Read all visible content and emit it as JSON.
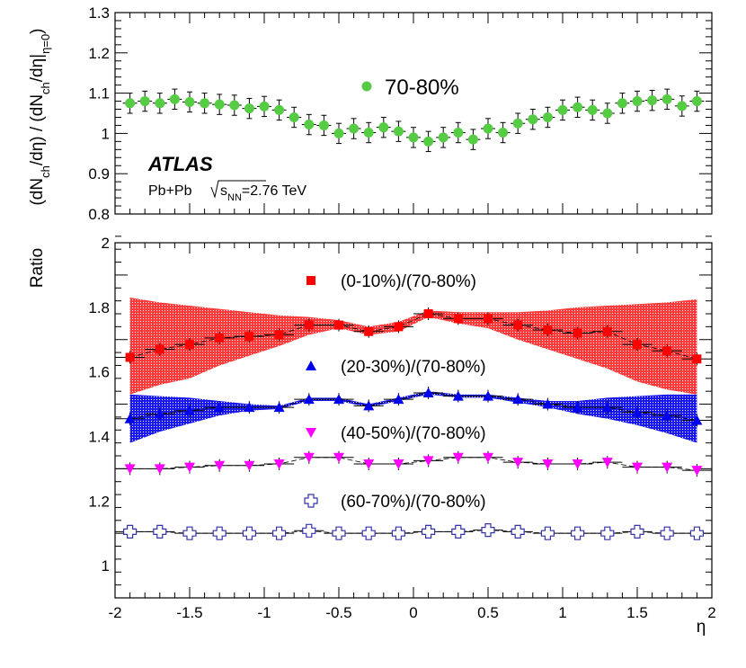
{
  "chart_data": [
    {
      "type": "scatter",
      "panel": "top",
      "ylabel_parts": [
        "(dN",
        "ch",
        "/dη) / (dN",
        "ch",
        "/dη|",
        "η=0",
        ")"
      ],
      "xlim": [
        -2,
        2
      ],
      "ylim": [
        0.8,
        1.3
      ],
      "yticks": [
        "0.8",
        "0.9",
        "1",
        "1.1",
        "1.2",
        "1.3"
      ],
      "experiment": "ATLAS",
      "system_label": "Pb+Pb",
      "energy_label_parts": [
        "s",
        "NN",
        "=2.76 TeV"
      ],
      "series": [
        {
          "name": "70-80%",
          "color": "#55cc44",
          "marker": "circle",
          "x": [
            -1.9,
            -1.8,
            -1.7,
            -1.6,
            -1.5,
            -1.4,
            -1.3,
            -1.2,
            -1.1,
            -1.0,
            -0.9,
            -0.8,
            -0.7,
            -0.6,
            -0.5,
            -0.4,
            -0.3,
            -0.2,
            -0.1,
            0.0,
            0.1,
            0.2,
            0.3,
            0.4,
            0.5,
            0.6,
            0.7,
            0.8,
            0.9,
            1.0,
            1.1,
            1.2,
            1.3,
            1.4,
            1.5,
            1.6,
            1.7,
            1.8,
            1.9
          ],
          "y": [
            1.075,
            1.08,
            1.075,
            1.085,
            1.078,
            1.075,
            1.072,
            1.07,
            1.062,
            1.067,
            1.058,
            1.04,
            1.022,
            1.02,
            1.0,
            1.012,
            1.002,
            1.015,
            1.005,
            0.99,
            0.98,
            0.99,
            1.002,
            0.985,
            1.012,
            1.002,
            1.025,
            1.035,
            1.04,
            1.058,
            1.065,
            1.058,
            1.05,
            1.075,
            1.08,
            1.082,
            1.085,
            1.068,
            1.08
          ],
          "yerr": [
            0.025,
            0.025,
            0.025,
            0.025,
            0.025,
            0.025,
            0.025,
            0.025,
            0.025,
            0.025,
            0.025,
            0.025,
            0.025,
            0.025,
            0.025,
            0.025,
            0.025,
            0.025,
            0.025,
            0.025,
            0.025,
            0.025,
            0.025,
            0.025,
            0.025,
            0.025,
            0.025,
            0.025,
            0.025,
            0.025,
            0.025,
            0.025,
            0.025,
            0.025,
            0.025,
            0.025,
            0.025,
            0.025,
            0.025
          ]
        }
      ]
    },
    {
      "type": "scatter",
      "panel": "bottom",
      "ylabel": "Ratio",
      "xlabel": "η",
      "xlim": [
        -2,
        2
      ],
      "ylim": [
        0.9,
        2.0
      ],
      "xticks": [
        "-2",
        "-1.5",
        "-1",
        "-0.5",
        "0",
        "0.5",
        "1",
        "1.5",
        "2"
      ],
      "yticks": [
        "1",
        "1.2",
        "1.4",
        "1.6",
        "1.8",
        "2"
      ],
      "x": [
        -1.9,
        -1.7,
        -1.5,
        -1.3,
        -1.1,
        -0.9,
        -0.7,
        -0.5,
        -0.3,
        -0.1,
        0.1,
        0.3,
        0.5,
        0.7,
        0.9,
        1.1,
        1.3,
        1.5,
        1.7,
        1.9
      ],
      "series": [
        {
          "name": "(0-10%)/(70-80%)",
          "color": "#ff0000",
          "marker": "square",
          "y": [
            1.645,
            1.67,
            1.685,
            1.705,
            1.71,
            1.715,
            1.745,
            1.745,
            1.725,
            1.74,
            1.78,
            1.765,
            1.765,
            1.745,
            1.73,
            1.72,
            1.725,
            1.685,
            1.665,
            1.64
          ],
          "band_upper": [
            1.83,
            1.815,
            1.805,
            1.795,
            1.785,
            1.775,
            1.77,
            1.76,
            1.74,
            1.755,
            1.79,
            1.785,
            1.785,
            1.785,
            1.79,
            1.8,
            1.805,
            1.81,
            1.815,
            1.825
          ],
          "band_lower": [
            1.53,
            1.56,
            1.58,
            1.62,
            1.65,
            1.68,
            1.715,
            1.735,
            1.715,
            1.725,
            1.77,
            1.75,
            1.735,
            1.7,
            1.67,
            1.64,
            1.61,
            1.57,
            1.545,
            1.53
          ]
        },
        {
          "name": "(20-30%)/(70-80%)",
          "color": "#0000ee",
          "marker": "triangle-up",
          "y": [
            1.455,
            1.47,
            1.48,
            1.49,
            1.49,
            1.49,
            1.515,
            1.515,
            1.495,
            1.515,
            1.535,
            1.525,
            1.525,
            1.515,
            1.5,
            1.49,
            1.49,
            1.475,
            1.465,
            1.45
          ],
          "band_upper": [
            1.53,
            1.525,
            1.52,
            1.51,
            1.5,
            1.495,
            1.52,
            1.52,
            1.5,
            1.52,
            1.54,
            1.53,
            1.53,
            1.52,
            1.51,
            1.51,
            1.52,
            1.525,
            1.53,
            1.53
          ],
          "band_lower": [
            1.38,
            1.415,
            1.44,
            1.465,
            1.48,
            1.485,
            1.51,
            1.51,
            1.49,
            1.51,
            1.53,
            1.52,
            1.52,
            1.505,
            1.49,
            1.47,
            1.455,
            1.435,
            1.41,
            1.38
          ]
        },
        {
          "name": "(40-50%)/(70-80%)",
          "color": "#ff00ff",
          "marker": "triangle-down",
          "y": [
            1.3,
            1.3,
            1.305,
            1.31,
            1.31,
            1.315,
            1.335,
            1.335,
            1.315,
            1.315,
            1.325,
            1.335,
            1.335,
            1.32,
            1.315,
            1.315,
            1.32,
            1.305,
            1.305,
            1.295
          ]
        },
        {
          "name": "(60-70%)/(70-80%)",
          "color": "#3333aa",
          "marker": "cross-open",
          "y": [
            1.105,
            1.105,
            1.1,
            1.1,
            1.1,
            1.1,
            1.108,
            1.1,
            1.1,
            1.1,
            1.105,
            1.105,
            1.11,
            1.105,
            1.1,
            1.1,
            1.1,
            1.105,
            1.1,
            1.1
          ]
        }
      ]
    }
  ]
}
